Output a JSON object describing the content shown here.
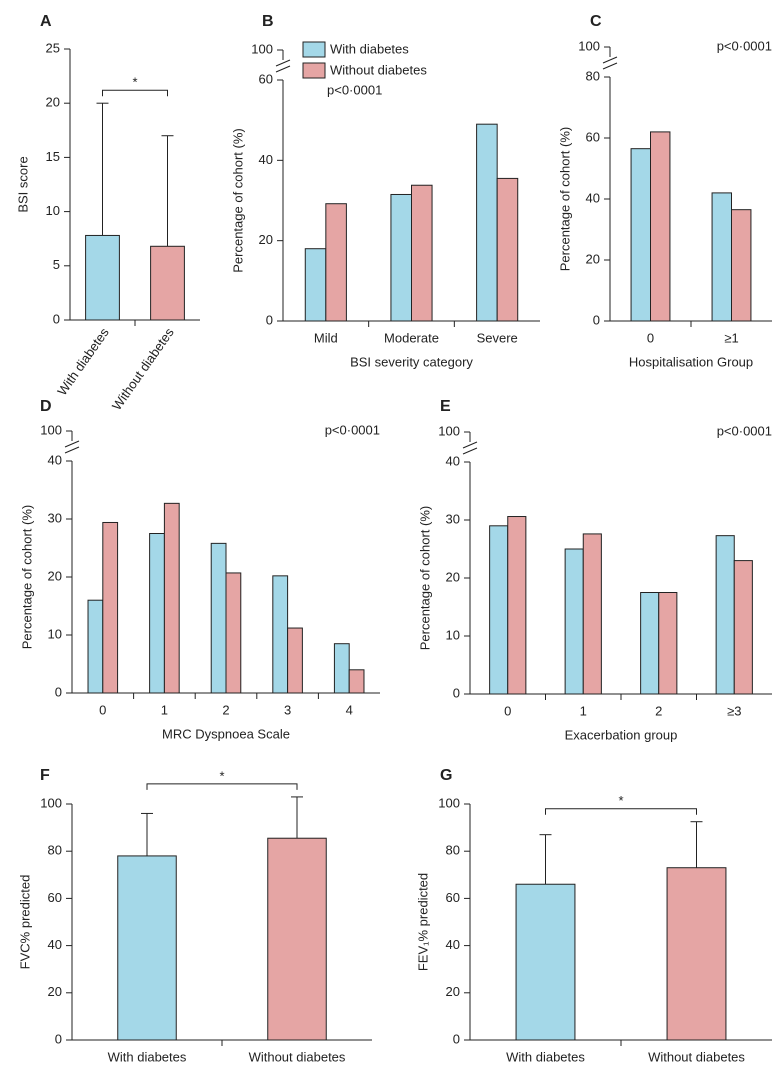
{
  "chart_data": [
    {
      "label": "A",
      "type": "bar",
      "categories": [
        "With diabetes",
        "Without diabetes"
      ],
      "values": [
        7.8,
        6.8
      ],
      "errors": [
        12.2,
        10.2
      ],
      "colors": [
        "#a4d8e8",
        "#e5a5a4"
      ],
      "ylabel": "BSI score",
      "ylim": [
        0,
        25
      ],
      "yticks": [
        0,
        5,
        10,
        15,
        20,
        25
      ],
      "annotation": "*"
    },
    {
      "label": "B",
      "type": "grouped_bar",
      "categories": [
        "Mild",
        "Moderate",
        "Severe"
      ],
      "series": [
        {
          "name": "With diabetes",
          "color": "#a4d8e8",
          "values": [
            18,
            31.5,
            49
          ]
        },
        {
          "name": "Without diabetes",
          "color": "#e5a5a4",
          "values": [
            29.2,
            33.8,
            35.5
          ]
        }
      ],
      "xlabel": "BSI severity category",
      "ylabel": "Percentage of cohort (%)",
      "ylim": [
        0,
        60
      ],
      "yticks": [
        0,
        20,
        40,
        60
      ],
      "axis_break_tick": 100,
      "annotation": "p<0·0001",
      "legend": "top-left"
    },
    {
      "label": "C",
      "type": "grouped_bar",
      "categories": [
        "0",
        "≥1"
      ],
      "series": [
        {
          "color": "#a4d8e8",
          "values": [
            56.5,
            42
          ]
        },
        {
          "color": "#e5a5a4",
          "values": [
            62,
            36.5
          ]
        }
      ],
      "xlabel": "Hospitalisation Group",
      "ylabel": "Percentage of cohort (%)",
      "ylim": [
        0,
        80
      ],
      "yticks": [
        0,
        20,
        40,
        60,
        80
      ],
      "axis_break_tick": 100,
      "annotation": "p<0·0001"
    },
    {
      "label": "D",
      "type": "grouped_bar",
      "categories": [
        "0",
        "1",
        "2",
        "3",
        "4"
      ],
      "series": [
        {
          "color": "#a4d8e8",
          "values": [
            16,
            27.5,
            25.8,
            20.2,
            8.5
          ]
        },
        {
          "color": "#e5a5a4",
          "values": [
            29.4,
            32.7,
            20.7,
            11.2,
            4
          ]
        }
      ],
      "xlabel": "MRC Dyspnoea Scale",
      "ylabel": "Percentage of cohort (%)",
      "ylim": [
        0,
        40
      ],
      "yticks": [
        0,
        10,
        20,
        30,
        40
      ],
      "axis_break_tick": 100,
      "annotation": "p<0·0001"
    },
    {
      "label": "E",
      "type": "grouped_bar",
      "categories": [
        "0",
        "1",
        "2",
        "≥3"
      ],
      "series": [
        {
          "color": "#a4d8e8",
          "values": [
            29,
            25,
            17.5,
            27.3
          ]
        },
        {
          "color": "#e5a5a4",
          "values": [
            30.6,
            27.6,
            17.5,
            23
          ]
        }
      ],
      "xlabel": "Exacerbation group",
      "ylabel": "Percentage of cohort (%)",
      "ylim": [
        0,
        40
      ],
      "yticks": [
        0,
        10,
        20,
        30,
        40
      ],
      "axis_break_tick": 100,
      "annotation": "p<0·0001"
    },
    {
      "label": "F",
      "type": "bar",
      "categories": [
        "With diabetes",
        "Without diabetes"
      ],
      "values": [
        78,
        85.5
      ],
      "errors": [
        18,
        17.5
      ],
      "colors": [
        "#a4d8e8",
        "#e5a5a4"
      ],
      "ylabel": "FVC% predicted",
      "ylim": [
        0,
        100
      ],
      "yticks": [
        0,
        20,
        40,
        60,
        80,
        100
      ],
      "annotation": "*"
    },
    {
      "label": "G",
      "type": "bar",
      "categories": [
        "With diabetes",
        "Without diabetes"
      ],
      "values": [
        66,
        73
      ],
      "errors": [
        21,
        19.5
      ],
      "colors": [
        "#a4d8e8",
        "#e5a5a4"
      ],
      "ylabel": "FEV₁% predicted",
      "ylim": [
        0,
        100
      ],
      "yticks": [
        0,
        20,
        40,
        60,
        80,
        100
      ],
      "annotation": "*"
    }
  ]
}
